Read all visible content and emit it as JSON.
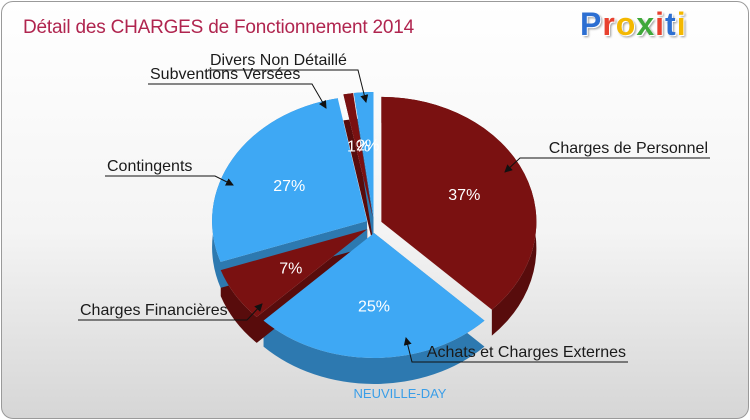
{
  "title": "Détail des CHARGES de Fonctionnement 2014",
  "logo": {
    "letters": [
      "P",
      "r",
      "o",
      "x",
      "i",
      "t",
      "i"
    ]
  },
  "chart_data": {
    "type": "pie",
    "title": "Détail des CHARGES de Fonctionnement 2014",
    "footer": "NEUVILLE-DAY",
    "slices": [
      {
        "label": "Charges de Personnel",
        "value": 37,
        "pct_label": "37%",
        "color": "#7a1111"
      },
      {
        "label": "Achats et Charges Externes",
        "value": 25,
        "pct_label": "25%",
        "color": "#3ea8f4"
      },
      {
        "label": "Charges Financières",
        "value": 7,
        "pct_label": "7%",
        "color": "#7a1111"
      },
      {
        "label": "Contingents",
        "value": 27,
        "pct_label": "27%",
        "color": "#3ea8f4"
      },
      {
        "label": "Subventions Versées",
        "value": 1,
        "pct_label": "1%",
        "color": "#7a1111"
      },
      {
        "label": "Divers Non Détaillé",
        "value": 2,
        "pct_label": "2%",
        "color": "#3ea8f4"
      }
    ]
  }
}
